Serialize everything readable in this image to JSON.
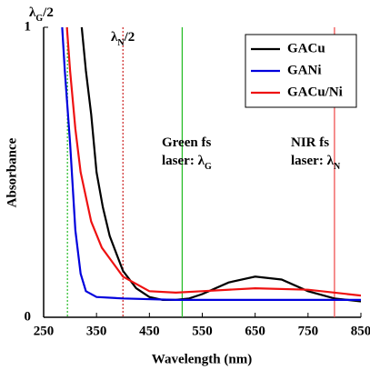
{
  "chart_data": {
    "type": "line",
    "xlabel": "Wavelength (nm)",
    "ylabel": "Absorbance",
    "xlim": [
      250,
      850
    ],
    "xticks": [
      250,
      350,
      450,
      550,
      650,
      750,
      850
    ],
    "ylim": [
      0,
      1
    ],
    "yticks": [
      0,
      1
    ],
    "legend": "top-right",
    "series": [
      {
        "name": "GACu",
        "color": "#000000",
        "x": [
          322,
          330,
          340,
          350,
          362,
          375,
          400,
          425,
          450,
          475,
          500,
          525,
          550,
          600,
          650,
          700,
          750,
          800,
          850
        ],
        "values": [
          1,
          0.85,
          0.7,
          0.5,
          0.38,
          0.28,
          0.16,
          0.1,
          0.07,
          0.06,
          0.06,
          0.065,
          0.08,
          0.12,
          0.14,
          0.13,
          0.09,
          0.065,
          0.055
        ]
      },
      {
        "name": "GANi",
        "color": "#0000dd",
        "x": [
          285,
          290,
          300,
          310,
          320,
          330,
          350,
          400,
          500,
          650,
          850
        ],
        "values": [
          1,
          0.85,
          0.6,
          0.3,
          0.15,
          0.09,
          0.07,
          0.065,
          0.06,
          0.06,
          0.06
        ]
      },
      {
        "name": "GACu/Ni",
        "color": "#ee1111",
        "x": [
          294,
          300,
          310,
          320,
          340,
          360,
          400,
          450,
          500,
          550,
          650,
          750,
          850
        ],
        "values": [
          1,
          0.85,
          0.65,
          0.5,
          0.33,
          0.24,
          0.14,
          0.09,
          0.085,
          0.09,
          0.1,
          0.095,
          0.075
        ]
      }
    ],
    "reference_lines": [
      {
        "x": 295,
        "color": "#22bb22",
        "style": "dotted"
      },
      {
        "x": 400,
        "color": "#cc2222",
        "style": "dotted"
      },
      {
        "x": 512,
        "color": "#22bb22",
        "style": "solid"
      },
      {
        "x": 800,
        "color": "#ee4444",
        "style": "solid"
      }
    ],
    "annotations": [
      {
        "lines": [
          {
            "text": "λ",
            "sub": "G",
            "tail": "/2"
          }
        ]
      },
      {
        "lines": [
          {
            "text": "λ",
            "sub": "N",
            "tail": "/2"
          }
        ]
      },
      {
        "lines": [
          {
            "text": "Green fs"
          },
          {
            "text": "laser: λ",
            "sub": "G"
          }
        ]
      },
      {
        "lines": [
          {
            "text": "NIR fs"
          },
          {
            "text": "laser: λ",
            "sub": "N"
          }
        ]
      }
    ]
  }
}
